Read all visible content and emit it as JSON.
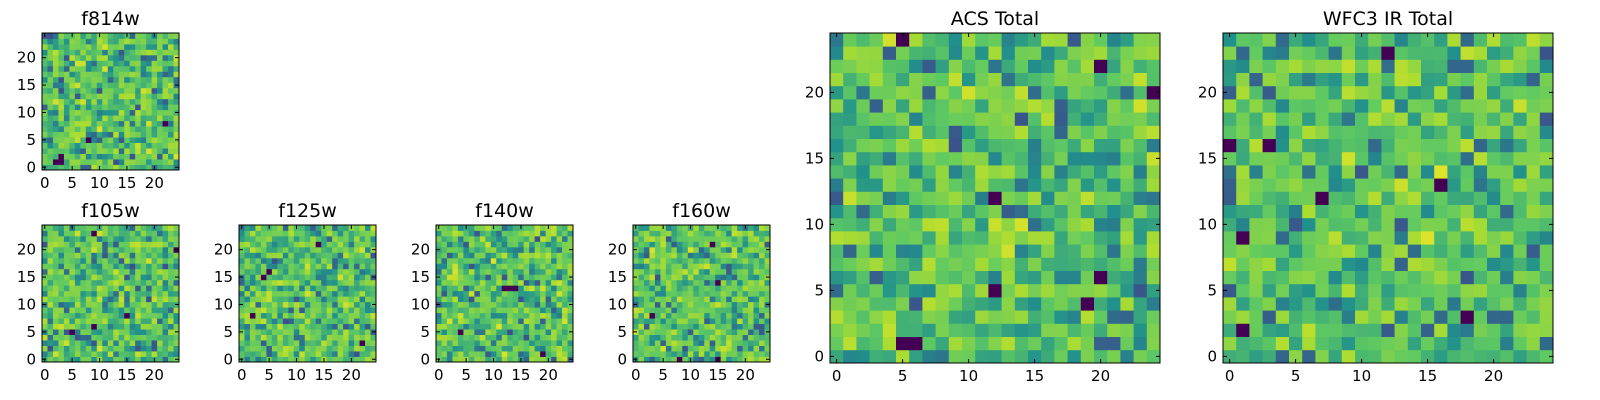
{
  "chart_data": [
    {
      "type": "heatmap",
      "title": "f814w",
      "size": 25,
      "seed": 11,
      "dark_cells": [
        [
          5,
          8
        ],
        [
          2,
          3
        ],
        [
          1,
          2
        ],
        [
          1,
          3
        ],
        [
          8,
          22
        ]
      ],
      "xticks": [
        0,
        5,
        10,
        15,
        20
      ],
      "yticks": [
        0,
        5,
        10,
        15,
        20
      ],
      "xlim": [
        -0.5,
        24.5
      ],
      "ylim": [
        -0.5,
        24.5
      ],
      "colormap": "viridis",
      "grid": false
    },
    {
      "type": "heatmap",
      "title": "f105w",
      "size": 25,
      "seed": 23,
      "dark_cells": [
        [
          6,
          9
        ],
        [
          5,
          5
        ],
        [
          23,
          9
        ],
        [
          20,
          24
        ],
        [
          8,
          15
        ]
      ],
      "xticks": [
        0,
        5,
        10,
        15,
        20
      ],
      "yticks": [
        0,
        5,
        10,
        15,
        20
      ],
      "xlim": [
        -0.5,
        24.5
      ],
      "ylim": [
        -0.5,
        24.5
      ],
      "colormap": "viridis",
      "grid": false
    },
    {
      "type": "heatmap",
      "title": "f125w",
      "size": 25,
      "seed": 37,
      "dark_cells": [
        [
          21,
          14
        ],
        [
          15,
          4
        ],
        [
          16,
          5
        ],
        [
          8,
          2
        ],
        [
          3,
          22
        ]
      ],
      "xticks": [
        0,
        5,
        10,
        15,
        20
      ],
      "yticks": [
        0,
        5,
        10,
        15,
        20
      ],
      "xlim": [
        -0.5,
        24.5
      ],
      "ylim": [
        -0.5,
        24.5
      ],
      "colormap": "viridis",
      "grid": false
    },
    {
      "type": "heatmap",
      "title": "f140w",
      "size": 25,
      "seed": 41,
      "dark_cells": [
        [
          13,
          12
        ],
        [
          13,
          13
        ],
        [
          13,
          14
        ],
        [
          5,
          4
        ],
        [
          1,
          19
        ]
      ],
      "xticks": [
        0,
        5,
        10,
        15,
        20
      ],
      "yticks": [
        0,
        5,
        10,
        15,
        20
      ],
      "xlim": [
        -0.5,
        24.5
      ],
      "ylim": [
        -0.5,
        24.5
      ],
      "colormap": "viridis",
      "grid": false
    },
    {
      "type": "heatmap",
      "title": "f160w",
      "size": 25,
      "seed": 53,
      "dark_cells": [
        [
          21,
          14
        ],
        [
          0,
          8
        ],
        [
          0,
          15
        ],
        [
          14,
          15
        ],
        [
          8,
          3
        ]
      ],
      "xticks": [
        0,
        5,
        10,
        15,
        20
      ],
      "yticks": [
        0,
        5,
        10,
        15,
        20
      ],
      "xlim": [
        -0.5,
        24.5
      ],
      "ylim": [
        -0.5,
        24.5
      ],
      "colormap": "viridis",
      "grid": false
    },
    {
      "type": "heatmap",
      "title": "ACS Total",
      "size": 25,
      "seed": 67,
      "dark_cells": [
        [
          1,
          5
        ],
        [
          1,
          6
        ],
        [
          5,
          12
        ],
        [
          6,
          20
        ],
        [
          4,
          19
        ],
        [
          24,
          5
        ],
        [
          22,
          20
        ],
        [
          20,
          24
        ],
        [
          12,
          12
        ]
      ],
      "xticks": [
        0,
        5,
        10,
        15,
        20
      ],
      "yticks": [
        0,
        5,
        10,
        15,
        20
      ],
      "xlim": [
        -0.5,
        24.5
      ],
      "ylim": [
        -0.5,
        24.5
      ],
      "colormap": "viridis",
      "grid": false
    },
    {
      "type": "heatmap",
      "title": "WFC3 IR Total",
      "size": 25,
      "seed": 79,
      "dark_cells": [
        [
          16,
          0
        ],
        [
          16,
          3
        ],
        [
          12,
          7
        ],
        [
          13,
          16
        ],
        [
          9,
          1
        ],
        [
          3,
          18
        ],
        [
          2,
          1
        ],
        [
          23,
          12
        ]
      ],
      "xticks": [
        0,
        5,
        10,
        15,
        20
      ],
      "yticks": [
        0,
        5,
        10,
        15,
        20
      ],
      "xlim": [
        -0.5,
        24.5
      ],
      "ylim": [
        -0.5,
        24.5
      ],
      "colormap": "viridis",
      "grid": false
    }
  ]
}
